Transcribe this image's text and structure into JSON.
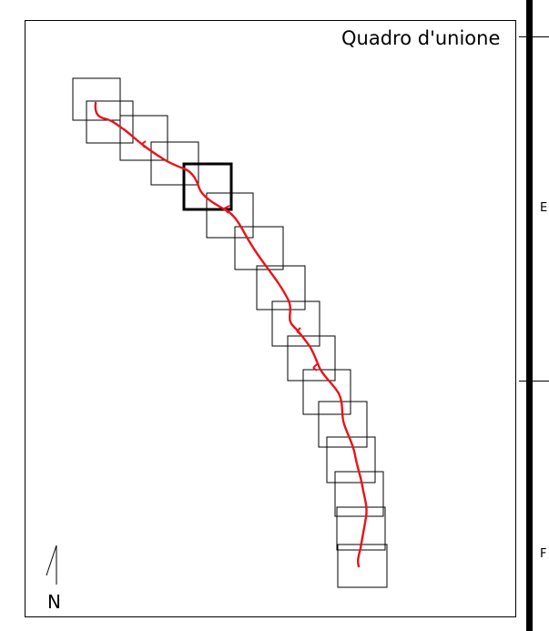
{
  "map": {
    "title": "Quadro d'unione",
    "north_label": "N",
    "sheets_count": 17,
    "highlighted_sheet": 5,
    "route_color": "#e8141b",
    "sheet_outline_color": "#000000"
  },
  "side_panel": {
    "row_labels": [
      "E",
      "F"
    ]
  }
}
